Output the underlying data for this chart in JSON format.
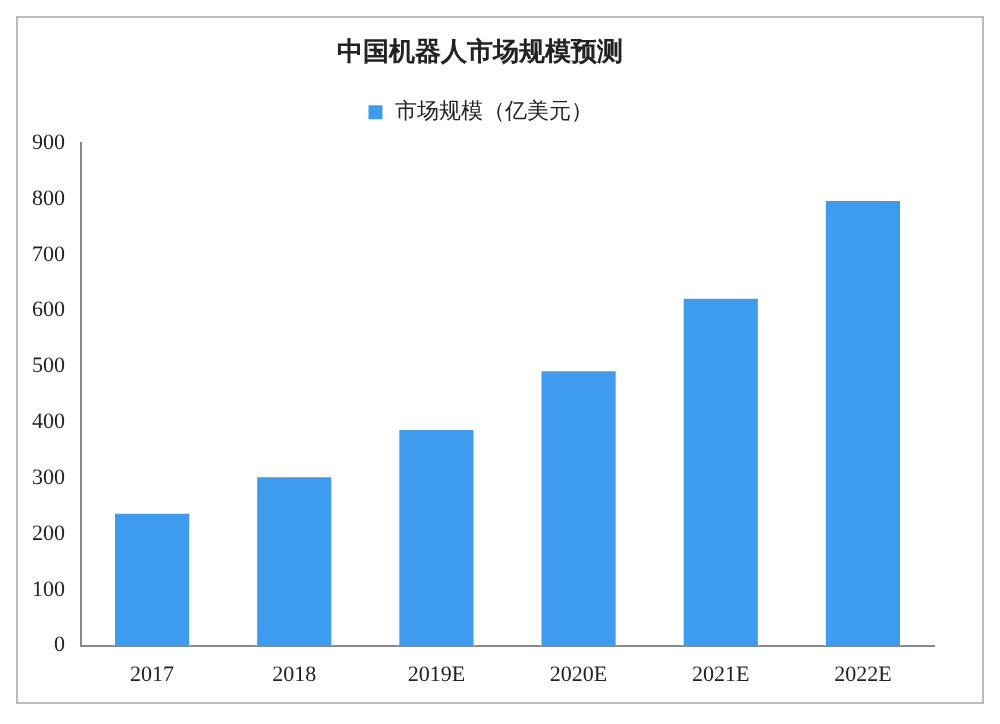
{
  "chart_data": {
    "type": "bar",
    "title": "中国机器人市场规模预测",
    "categories": [
      "2017",
      "2018",
      "2019E",
      "2020E",
      "2021E",
      "2022E"
    ],
    "series": [
      {
        "name": "市场规模（亿美元）",
        "color": "#3d9cf0",
        "values": [
          240,
          305,
          390,
          495,
          625,
          800
        ]
      }
    ],
    "ylim": [
      0,
      900
    ],
    "yticks": [
      0,
      100,
      200,
      300,
      400,
      500,
      600,
      700,
      800,
      900
    ],
    "grid": false,
    "legend": "top"
  }
}
